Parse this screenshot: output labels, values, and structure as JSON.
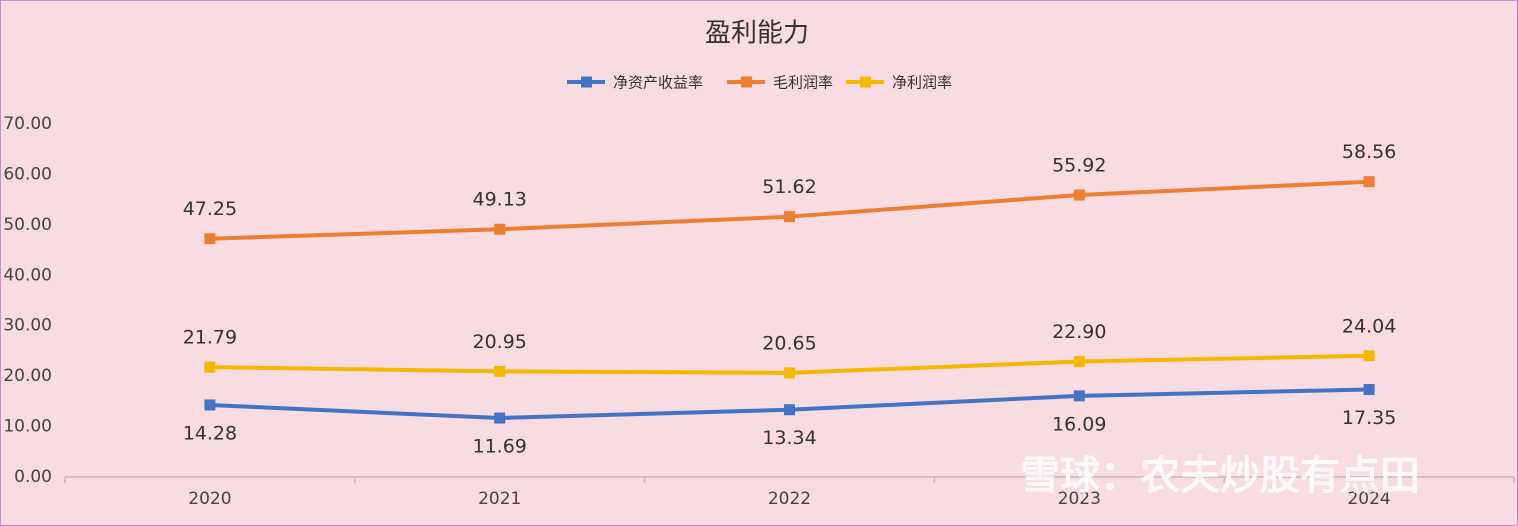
{
  "chart_data": {
    "type": "line",
    "title": "盈利能力",
    "watermark": "雪球：农夫炒股有点田",
    "categories": [
      "2020",
      "2021",
      "2022",
      "2023",
      "2024"
    ],
    "series": [
      {
        "name": "净资产收益率",
        "color": "#4472c4",
        "values": [
          14.28,
          11.69,
          13.34,
          16.09,
          17.35
        ],
        "value_labels": [
          "14.28",
          "11.69",
          "13.34",
          "16.09",
          "17.35"
        ],
        "label_position": "below"
      },
      {
        "name": "毛利润率",
        "color": "#ed7d31",
        "values": [
          47.25,
          49.13,
          51.62,
          55.92,
          58.56
        ],
        "value_labels": [
          "47.25",
          "49.13",
          "51.62",
          "55.92",
          "58.56"
        ],
        "label_position": "above"
      },
      {
        "name": "净利润率",
        "color": "#f5b800",
        "values": [
          21.79,
          20.95,
          20.65,
          22.9,
          24.04
        ],
        "value_labels": [
          "21.79",
          "20.95",
          "20.65",
          "22.90",
          "24.04"
        ],
        "label_position": "above"
      }
    ],
    "ylim": [
      0,
      70
    ],
    "yticks": [
      {
        "value": 0,
        "label": "0.00"
      },
      {
        "value": 10,
        "label": "10.00"
      },
      {
        "value": 20,
        "label": "20.00"
      },
      {
        "value": 30,
        "label": "30.00"
      },
      {
        "value": 40,
        "label": "40.00"
      },
      {
        "value": 50,
        "label": "50.00"
      },
      {
        "value": 60,
        "label": "60.00"
      },
      {
        "value": 70,
        "label": "70.00"
      }
    ],
    "grid": false,
    "legend": "top"
  }
}
